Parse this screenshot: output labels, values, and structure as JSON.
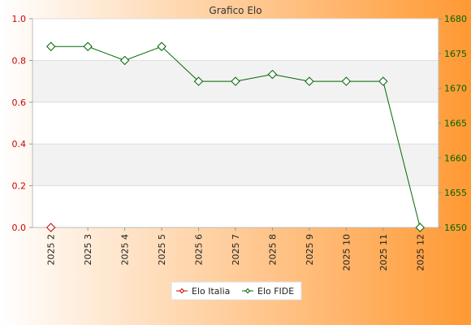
{
  "colors": {
    "bg_left": "#ffffff",
    "bg_right": "#ff9933",
    "plot_bg": "#ffffff",
    "band": "#f2f2f2",
    "grid": "#dddddd",
    "italia": "#cc0000",
    "fide": "#006600",
    "left_axis_text": "#cc0000",
    "right_axis_text": "#006600",
    "title_text": "#333333",
    "xtick_text": "#222222"
  },
  "chart_data": {
    "type": "line",
    "title": "Grafico Elo",
    "categories": [
      "2025 2",
      "2025 3",
      "2025 4",
      "2025 5",
      "2025 6",
      "2025 7",
      "2025 8",
      "2025 9",
      "2025 10",
      "2025 11",
      "2025 12"
    ],
    "series": [
      {
        "name": "Elo Italia",
        "axis": "left",
        "values": [
          0,
          null,
          null,
          null,
          null,
          null,
          null,
          null,
          null,
          null,
          null
        ]
      },
      {
        "name": "Elo FIDE",
        "axis": "right",
        "values": [
          1676,
          1676,
          1674,
          1676,
          1671,
          1671,
          1672,
          1671,
          1671,
          1671,
          1650
        ]
      }
    ],
    "left_axis": {
      "ylim": [
        0,
        1
      ],
      "ticks": [
        "0.0",
        "0.2",
        "0.4",
        "0.6",
        "0.8",
        "1.0"
      ]
    },
    "right_axis": {
      "ylim": [
        1650,
        1680
      ],
      "ticks": [
        "1650",
        "1655",
        "1660",
        "1665",
        "1670",
        "1675",
        "1680"
      ]
    },
    "grid": true,
    "legend_position": "bottom-center",
    "marker": "diamond"
  }
}
